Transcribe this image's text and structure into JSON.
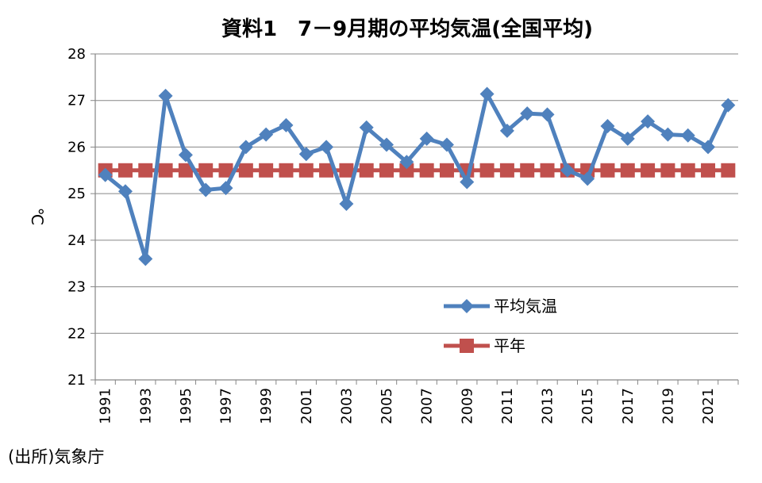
{
  "chart_data": {
    "type": "line",
    "title": "資料1　7－9月期の平均気温(全国平均)",
    "ylabel": "℃",
    "xlabel": "",
    "ylim": [
      21,
      28
    ],
    "yticks": [
      21,
      22,
      23,
      24,
      25,
      26,
      27,
      28
    ],
    "grid": true,
    "legend_position": "center-right",
    "x": [
      1991,
      1992,
      1993,
      1994,
      1995,
      1996,
      1997,
      1998,
      1999,
      2000,
      2001,
      2002,
      2003,
      2004,
      2005,
      2006,
      2007,
      2008,
      2009,
      2010,
      2011,
      2012,
      2013,
      2014,
      2015,
      2016,
      2017,
      2018,
      2019,
      2020,
      2021,
      2022
    ],
    "x_tick_labels": [
      "1991",
      "1993",
      "1995",
      "1997",
      "1999",
      "2001",
      "2003",
      "2005",
      "2007",
      "2009",
      "2011",
      "2013",
      "2015",
      "2017",
      "2019",
      "2021"
    ],
    "series": [
      {
        "name": "平均気温",
        "color": "#4F81BD",
        "marker": "diamond",
        "values": [
          25.4,
          25.05,
          23.6,
          27.1,
          25.83,
          25.08,
          25.12,
          26.0,
          26.27,
          26.47,
          25.85,
          26.0,
          24.78,
          26.42,
          26.05,
          25.68,
          26.18,
          26.05,
          25.25,
          27.14,
          26.35,
          26.72,
          26.7,
          25.5,
          25.32,
          26.45,
          26.18,
          26.55,
          26.27,
          26.25,
          26.0,
          26.9
        ]
      },
      {
        "name": "平年",
        "color": "#C0504D",
        "marker": "square",
        "values": [
          25.5,
          25.5,
          25.5,
          25.5,
          25.5,
          25.5,
          25.5,
          25.5,
          25.5,
          25.5,
          25.5,
          25.5,
          25.5,
          25.5,
          25.5,
          25.5,
          25.5,
          25.5,
          25.5,
          25.5,
          25.5,
          25.5,
          25.5,
          25.5,
          25.5,
          25.5,
          25.5,
          25.5,
          25.5,
          25.5,
          25.5,
          25.5
        ]
      }
    ]
  },
  "source_note": "(出所)気象庁"
}
